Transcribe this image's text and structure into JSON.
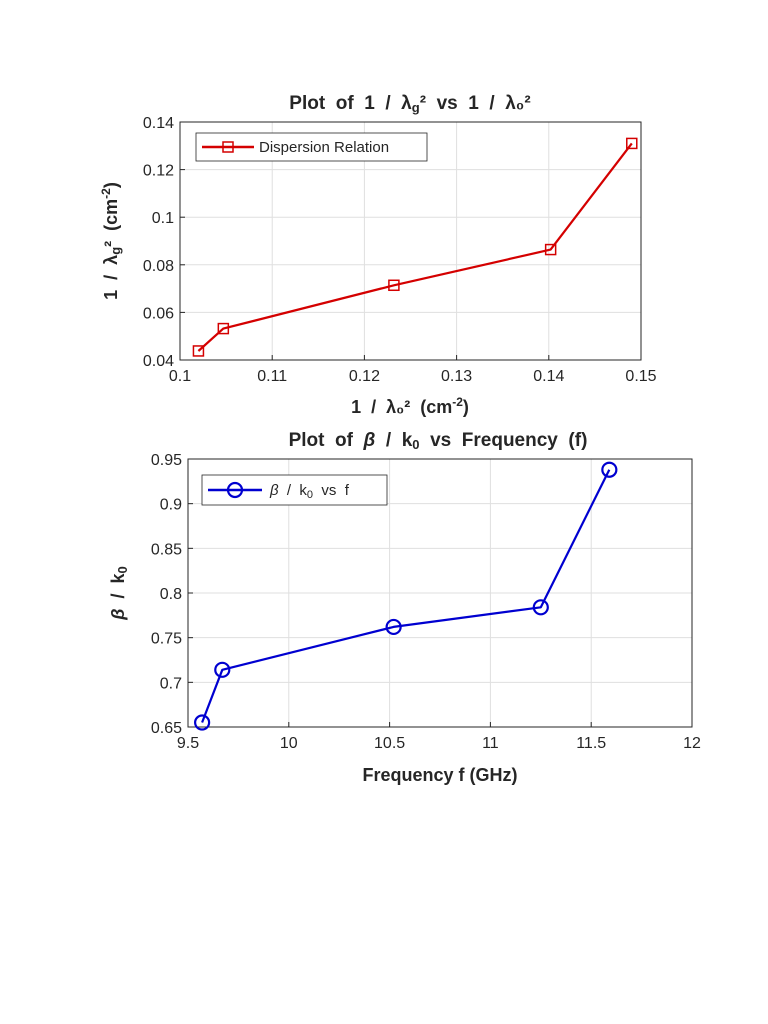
{
  "chart_data": [
    {
      "type": "line",
      "title": "Plot of 1 / λg² vs 1 / λ₀²",
      "xlabel": "1 / λ₀² (cm⁻²)",
      "ylabel": "1 / λg² (cm⁻²)",
      "xlim": [
        0.1,
        0.15
      ],
      "ylim": [
        0.04,
        0.14
      ],
      "xticks": [
        "0.1",
        "0.11",
        "0.12",
        "0.13",
        "0.14",
        "0.15"
      ],
      "yticks": [
        "0.04",
        "0.06",
        "0.08",
        "0.1",
        "0.12",
        "0.14"
      ],
      "grid": true,
      "legend_position": "top-left",
      "series": [
        {
          "name": "Dispersion Relation",
          "color": "#d40000",
          "marker": "square",
          "x": [
            0.102,
            0.1047,
            0.1232,
            0.1402,
            0.149
          ],
          "y": [
            0.0438,
            0.0532,
            0.0714,
            0.0864,
            0.131
          ]
        }
      ]
    },
    {
      "type": "line",
      "title": "Plot of β / k0 vs Frequency (f)",
      "xlabel": "Frequency f (GHz)",
      "ylabel": "β / k0",
      "xlim": [
        9.5,
        12
      ],
      "ylim": [
        0.65,
        0.95
      ],
      "xticks": [
        "9.5",
        "10",
        "10.5",
        "11",
        "11.5",
        "12"
      ],
      "yticks": [
        "0.65",
        "0.7",
        "0.75",
        "0.8",
        "0.85",
        "0.9",
        "0.95"
      ],
      "grid": true,
      "legend_position": "top-left",
      "series": [
        {
          "name": "β / k0 vs f",
          "color": "#0000d0",
          "marker": "circle",
          "x": [
            9.57,
            9.67,
            10.52,
            11.25,
            11.59
          ],
          "y": [
            0.655,
            0.714,
            0.762,
            0.784,
            0.938
          ]
        }
      ]
    }
  ]
}
